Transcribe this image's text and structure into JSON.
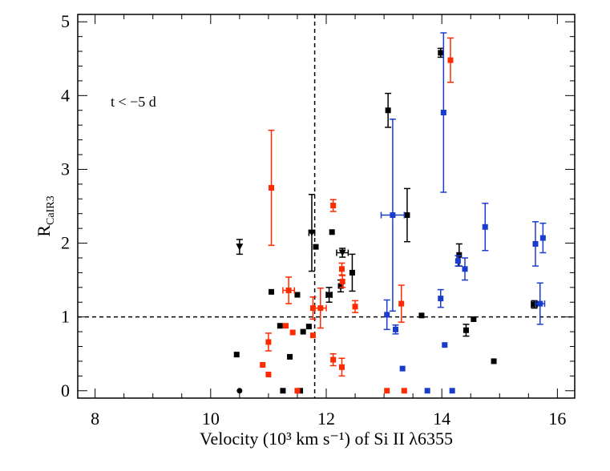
{
  "chart_data": {
    "type": "scatter",
    "xlabel": "Velocity (10³ km s⁻¹) of Si II λ6355",
    "ylabel_main": "R",
    "ylabel_sub": "CaIR3",
    "annotation": "t < −5 d",
    "xlim": [
      7.7,
      16.3
    ],
    "ylim": [
      -0.1,
      5.1
    ],
    "xticks": [
      8,
      10,
      12,
      14,
      16
    ],
    "yticks": [
      0,
      1,
      2,
      3,
      4,
      5
    ],
    "reference_lines": {
      "x": 11.8,
      "y": 1.0
    },
    "colors": {
      "black": "#000000",
      "red": "#ff2a00",
      "blue": "#1a3ccc"
    },
    "series": [
      {
        "color": "black",
        "points": [
          {
            "x": 10.45,
            "y": 0.49
          },
          {
            "x": 10.5,
            "y": 0.0,
            "marker": "circle"
          },
          {
            "x": 10.5,
            "y": 1.95,
            "yerr": 0.1,
            "marker": "triangle-down"
          },
          {
            "x": 11.05,
            "y": 1.34
          },
          {
            "x": 11.2,
            "y": 0.88
          },
          {
            "x": 11.25,
            "y": 0.0
          },
          {
            "x": 11.37,
            "y": 0.46
          },
          {
            "x": 11.5,
            "y": 1.3
          },
          {
            "x": 11.55,
            "y": 0.0
          },
          {
            "x": 11.6,
            "y": 0.8
          },
          {
            "x": 11.7,
            "y": 0.87
          },
          {
            "x": 11.75,
            "y": 2.14,
            "xerr": 0.05,
            "yerr": 0.52,
            "marker": "triangle-down"
          },
          {
            "x": 11.82,
            "y": 1.95
          },
          {
            "x": 12.05,
            "y": 1.3,
            "xerr": 0.05,
            "yerr": 0.1
          },
          {
            "x": 12.1,
            "y": 2.15
          },
          {
            "x": 12.25,
            "y": 1.42,
            "yerr": 0.08
          },
          {
            "x": 12.28,
            "y": 1.87,
            "xerr": 0.1,
            "yerr": 0.06,
            "marker": "triangle-down"
          },
          {
            "x": 12.45,
            "y": 1.6,
            "yerr": 0.25
          },
          {
            "x": 13.07,
            "y": 3.8,
            "yerr": 0.23
          },
          {
            "x": 13.4,
            "y": 2.38,
            "yerr": 0.36
          },
          {
            "x": 13.65,
            "y": 1.02
          },
          {
            "x": 13.98,
            "y": 4.58,
            "yerr": 0.06
          },
          {
            "x": 14.3,
            "y": 1.84,
            "yerr": 0.15
          },
          {
            "x": 14.42,
            "y": 0.82,
            "yerr": 0.08
          },
          {
            "x": 14.55,
            "y": 0.97
          },
          {
            "x": 14.9,
            "y": 0.4
          },
          {
            "x": 15.6,
            "y": 1.17,
            "xerr": 0.05,
            "yerr": 0.05
          }
        ]
      },
      {
        "color": "red",
        "points": [
          {
            "x": 10.9,
            "y": 0.35
          },
          {
            "x": 11.0,
            "y": 0.66,
            "yerr": 0.12
          },
          {
            "x": 11.0,
            "y": 0.22
          },
          {
            "x": 11.05,
            "y": 2.75,
            "yerr": 0.78
          },
          {
            "x": 11.3,
            "y": 0.88
          },
          {
            "x": 11.35,
            "y": 1.36,
            "xerr": 0.1,
            "yerr": 0.18
          },
          {
            "x": 11.42,
            "y": 0.79
          },
          {
            "x": 11.5,
            "y": 0.0
          },
          {
            "x": 11.77,
            "y": 1.12,
            "yerr": 0.15
          },
          {
            "x": 11.77,
            "y": 0.75
          },
          {
            "x": 11.9,
            "y": 1.12,
            "xerr": 0.1,
            "yerr": 0.27
          },
          {
            "x": 12.12,
            "y": 2.51,
            "yerr": 0.08
          },
          {
            "x": 12.12,
            "y": 0.42,
            "yerr": 0.08
          },
          {
            "x": 12.27,
            "y": 0.32,
            "yerr": 0.12
          },
          {
            "x": 12.27,
            "y": 1.65,
            "yerr": 0.08
          },
          {
            "x": 12.28,
            "y": 1.48,
            "yerr": 0.08
          },
          {
            "x": 12.5,
            "y": 1.14,
            "yerr": 0.08
          },
          {
            "x": 13.05,
            "y": 0.0
          },
          {
            "x": 13.3,
            "y": 1.18,
            "yerr": 0.25
          },
          {
            "x": 13.35,
            "y": 0.0
          },
          {
            "x": 14.15,
            "y": 4.48,
            "yerr": 0.3
          }
        ]
      },
      {
        "color": "blue",
        "points": [
          {
            "x": 13.05,
            "y": 1.03,
            "yerr": 0.2
          },
          {
            "x": 13.15,
            "y": 2.38,
            "xerr": 0.2,
            "yerr": 1.3
          },
          {
            "x": 13.2,
            "y": 0.83,
            "yerr": 0.06
          },
          {
            "x": 13.32,
            "y": 0.3
          },
          {
            "x": 13.75,
            "y": 0.0
          },
          {
            "x": 13.98,
            "y": 1.25,
            "yerr": 0.12
          },
          {
            "x": 14.03,
            "y": 3.77,
            "yerr": 1.08
          },
          {
            "x": 14.05,
            "y": 0.62
          },
          {
            "x": 14.18,
            "y": 0.0
          },
          {
            "x": 14.28,
            "y": 1.76,
            "yerr": 0.07
          },
          {
            "x": 14.4,
            "y": 1.65,
            "yerr": 0.15
          },
          {
            "x": 14.75,
            "y": 2.22,
            "yerr": 0.32
          },
          {
            "x": 15.62,
            "y": 1.99,
            "yerr": 0.3
          },
          {
            "x": 15.7,
            "y": 1.18,
            "xerr": 0.08,
            "yerr": 0.28
          },
          {
            "x": 15.75,
            "y": 2.07,
            "yerr": 0.2
          }
        ]
      }
    ]
  }
}
